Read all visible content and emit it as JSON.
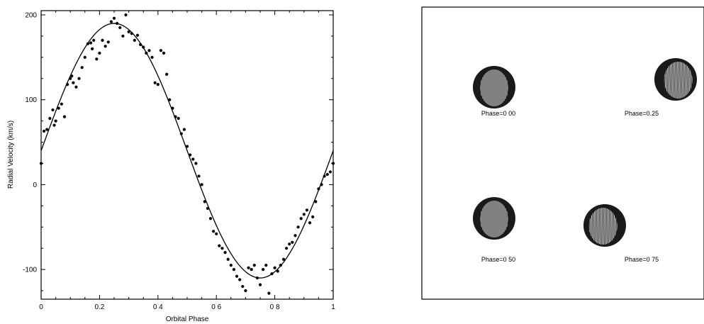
{
  "chart_data": [
    {
      "type": "scatter",
      "xlabel": "Orbital Phase",
      "ylabel": "Radial Velocity (km/s)",
      "xlim": [
        0,
        1
      ],
      "ylim": [
        -135,
        205
      ],
      "x_ticks": [
        0,
        0.2,
        0.4,
        0.6,
        0.8,
        1
      ],
      "x_tick_labels": [
        "0",
        "0.2",
        "0 4",
        "0 6",
        "0 8",
        "1"
      ],
      "y_ticks": [
        -100,
        0,
        100,
        200
      ],
      "y_tick_labels": [
        "-100",
        "0",
        "100",
        "200"
      ],
      "grid": false,
      "fit_curve": {
        "gamma": 40,
        "amplitude": 150,
        "zero_phase": 0
      },
      "series": [
        {
          "x": [
            0.0,
            0.01,
            0.02,
            0.03,
            0.04,
            0.045,
            0.05,
            0.06,
            0.07,
            0.08,
            0.09,
            0.1,
            0.105,
            0.11,
            0.12,
            0.13,
            0.14,
            0.15,
            0.16,
            0.17,
            0.175,
            0.18,
            0.19,
            0.2,
            0.21,
            0.22,
            0.23,
            0.24,
            0.25,
            0.26,
            0.27,
            0.28,
            0.29,
            0.3,
            0.31,
            0.32,
            0.33,
            0.34,
            0.35,
            0.36,
            0.37,
            0.38,
            0.39,
            0.4,
            0.41,
            0.42,
            0.43,
            0.44,
            0.45,
            0.46,
            0.47,
            0.48,
            0.49,
            0.5,
            0.51,
            0.52,
            0.53,
            0.54,
            0.55,
            0.56,
            0.57,
            0.58,
            0.59,
            0.6,
            0.61,
            0.62,
            0.63,
            0.64,
            0.65,
            0.66,
            0.67,
            0.68,
            0.69,
            0.7,
            0.71,
            0.72,
            0.73,
            0.74,
            0.75,
            0.76,
            0.77,
            0.78,
            0.79,
            0.8,
            0.81,
            0.82,
            0.83,
            0.84,
            0.85,
            0.86,
            0.87,
            0.88,
            0.89,
            0.9,
            0.91,
            0.92,
            0.93,
            0.94,
            0.95,
            0.96,
            0.97,
            0.98,
            0.99,
            1.0
          ],
          "y": [
            25,
            63,
            65,
            78,
            88,
            70,
            75,
            90,
            95,
            80,
            118,
            125,
            128,
            120,
            115,
            125,
            138,
            150,
            166,
            167,
            160,
            170,
            148,
            155,
            170,
            163,
            168,
            192,
            196,
            190,
            185,
            175,
            200,
            180,
            178,
            170,
            176,
            165,
            162,
            155,
            158,
            150,
            120,
            118,
            158,
            155,
            130,
            100,
            90,
            80,
            78,
            60,
            65,
            45,
            35,
            30,
            25,
            10,
            0,
            -20,
            -28,
            -40,
            -55,
            -58,
            -72,
            -75,
            -80,
            -88,
            -95,
            -100,
            -108,
            -112,
            -120,
            -125,
            -98,
            -100,
            -95,
            -110,
            -118,
            -100,
            -95,
            -128,
            -105,
            -98,
            -102,
            -95,
            -88,
            -75,
            -70,
            -68,
            -60,
            -50,
            -40,
            -35,
            -30,
            -45,
            -38,
            -20,
            -5,
            0,
            10,
            12,
            15,
            25
          ],
          "marker": "dot"
        }
      ]
    },
    {
      "type": "image-grid",
      "panels": [
        {
          "label": "Phase=0 00"
        },
        {
          "label": "Phase=0.25"
        },
        {
          "label": "Phase=0 50"
        },
        {
          "label": "Phase=0 75"
        }
      ]
    }
  ],
  "colors": {
    "ink": "#000000",
    "paper": "#ffffff",
    "disk_dark": "#1a1a1a",
    "disk_light": "#e8e8e8"
  }
}
